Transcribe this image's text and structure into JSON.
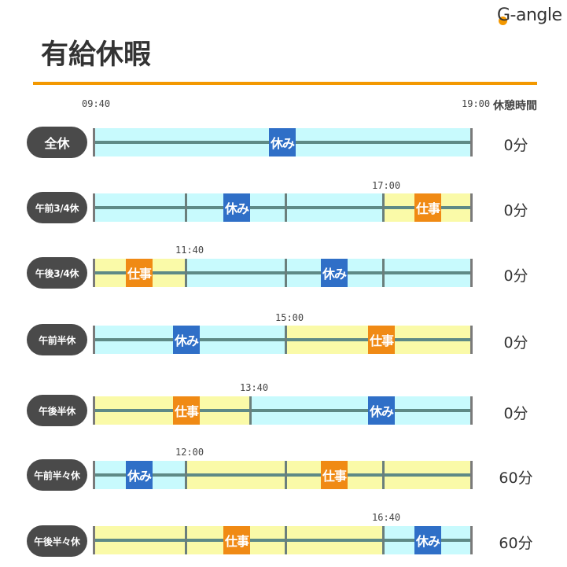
{
  "logo": {
    "text": "G-angle"
  },
  "title": "有給休暇",
  "header": {
    "start_time": "09:40",
    "end_time": "19:00",
    "break_label": "休憩時間"
  },
  "labels": {
    "rest": "休み",
    "work": "仕事"
  },
  "colors": {
    "accent": "#f39800",
    "rest_fill": "#c8fafd",
    "work_fill": "#fafaa8",
    "rest_tag": "#2f6fc7",
    "work_tag": "#f08a14",
    "pill": "#4a4a4a"
  },
  "rows": [
    {
      "name": "全休",
      "switch_time": "",
      "break": "0分"
    },
    {
      "name": "午前3/4休",
      "switch_time": "17:00",
      "break": "0分"
    },
    {
      "name": "午後3/4休",
      "switch_time": "11:40",
      "break": "0分"
    },
    {
      "name": "午前半休",
      "switch_time": "15:00",
      "break": "0分"
    },
    {
      "name": "午後半休",
      "switch_time": "13:40",
      "break": "0分"
    },
    {
      "name": "午前半々休",
      "switch_time": "12:00",
      "break": "60分"
    },
    {
      "name": "午後半々休",
      "switch_time": "16:40",
      "break": "60分"
    }
  ]
}
